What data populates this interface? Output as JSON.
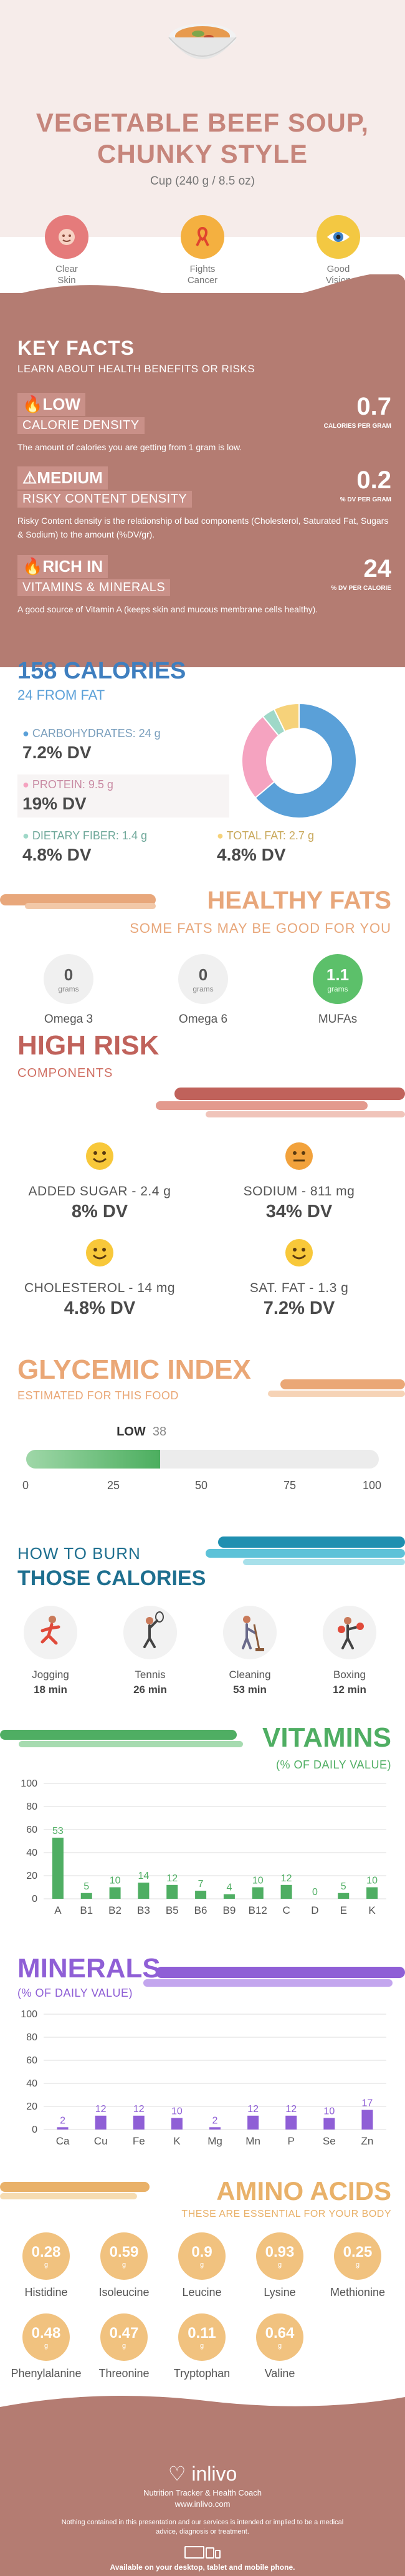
{
  "header": {
    "title": "VEGETABLE BEEF SOUP,",
    "title_line2": "CHUNKY STYLE",
    "serving": "Cup (240 g / 8.5 oz)",
    "benefits": [
      {
        "label": "Clear",
        "label2": "Skin",
        "icon": "face-icon",
        "color": "#e06a6a"
      },
      {
        "label": "Fights",
        "label2": "Cancer",
        "icon": "ribbon-icon",
        "color": "#f3a838"
      },
      {
        "label": "Good",
        "label2": "Vision",
        "icon": "eye-icon",
        "color": "#f0c43a"
      }
    ]
  },
  "key_facts": {
    "title": "KEY FACTS",
    "subtitle": "LEARN ABOUT HEALTH BENEFITS OR RISKS",
    "items": [
      {
        "level": "LOW",
        "category": "CALORIE DENSITY",
        "value": "0.7",
        "unit": "CALORIES PER GRAM",
        "desc": "The amount of calories you are getting from 1 gram is low."
      },
      {
        "level": "MEDIUM",
        "category": "RISKY CONTENT DENSITY",
        "value": "0.2",
        "unit": "% DV PER GRAM",
        "desc": "Risky Content density is the relationship of bad components (Cholesterol, Saturated Fat, Sugars & Sodium) to the amount (%DV/gr)."
      },
      {
        "level": "RICH  IN",
        "category": "VITAMINS & MINERALS",
        "value": "24",
        "unit": "% DV PER CALORIE",
        "desc": "A good source of Vitamin A (keeps skin and mucous membrane cells healthy)."
      }
    ]
  },
  "calories": {
    "title": "158 CALORIES",
    "subtitle": "24 FROM FAT",
    "carbs": {
      "name": "CARBOHYDRATES: 24 g",
      "dv": "7.2% DV",
      "color": "#5aa0d8"
    },
    "protein": {
      "name": "PROTEIN: 9.5 g",
      "dv": "19% DV",
      "color": "#f5a3c0"
    },
    "fiber": {
      "name": "DIETARY FIBER: 1.4 g",
      "dv": "4.8% DV",
      "color": "#9fd8c8"
    },
    "fat": {
      "name": "TOTAL FAT: 2.7 g",
      "dv": "4.8% DV",
      "color": "#f6d27a"
    }
  },
  "chart_data": [
    {
      "type": "pie",
      "categories": [
        "Carbohydrates",
        "Protein",
        "Dietary Fiber",
        "Total Fat"
      ],
      "values": [
        24,
        9.5,
        1.4,
        2.7
      ],
      "colors": [
        "#5aa0d8",
        "#f5a3c0",
        "#9fd8c8",
        "#f6d27a"
      ]
    },
    {
      "type": "bar",
      "title": "VITAMINS",
      "subtitle": "(% OF DAILY VALUE)",
      "categories": [
        "A",
        "B1",
        "B2",
        "B3",
        "B5",
        "B6",
        "B9",
        "B12",
        "C",
        "D",
        "E",
        "K"
      ],
      "values": [
        53,
        5,
        10,
        14,
        12,
        7,
        4,
        10,
        12,
        0,
        5,
        10
      ],
      "ylim": [
        0,
        100
      ],
      "yticks": [
        0,
        20,
        40,
        60,
        80,
        100
      ],
      "color": "#4fae63"
    },
    {
      "type": "bar",
      "title": "MINERALS",
      "subtitle": "(% OF DAILY VALUE)",
      "categories": [
        "Ca",
        "Cu",
        "Fe",
        "K",
        "Mg",
        "Mn",
        "P",
        "Se",
        "Zn"
      ],
      "values": [
        2,
        12,
        12,
        10,
        2,
        12,
        12,
        10,
        17
      ],
      "ylim": [
        0,
        100
      ],
      "yticks": [
        0,
        20,
        40,
        60,
        80,
        100
      ],
      "color": "#8f5fd6"
    }
  ],
  "healthy_fats": {
    "title": "HEALTHY FATS",
    "subtitle": "SOME FATS MAY BE GOOD FOR YOU",
    "items": [
      {
        "value": "0",
        "unit": "grams",
        "name": "Omega 3",
        "highlight": false
      },
      {
        "value": "0",
        "unit": "grams",
        "name": "Omega 6",
        "highlight": false
      },
      {
        "value": "1.1",
        "unit": "grams",
        "name": "MUFAs",
        "highlight": true
      }
    ]
  },
  "high_risk": {
    "title": "HIGH RISK",
    "subtitle": "COMPONENTS",
    "items": [
      {
        "name": "ADDED SUGAR - 2.4 g",
        "dv": "8% DV",
        "face": "happy-face-icon"
      },
      {
        "name": "SODIUM - 811 mg",
        "dv": "34% DV",
        "face": "neutral-face-icon"
      },
      {
        "name": "CHOLESTEROL - 14 mg",
        "dv": "4.8% DV",
        "face": "happy-face-icon"
      },
      {
        "name": "SAT. FAT - 1.3 g",
        "dv": "7.2% DV",
        "face": "happy-face-icon"
      }
    ]
  },
  "glycemic": {
    "title": "GLYCEMIC INDEX",
    "subtitle": "ESTIMATED FOR THIS FOOD",
    "level": "LOW",
    "value": 38,
    "value_label": "38",
    "ticks": [
      "0",
      "25",
      "50",
      "75",
      "100"
    ]
  },
  "burn": {
    "title1": "HOW TO BURN",
    "title2": "THOSE CALORIES",
    "activities": [
      {
        "name": "Jogging",
        "minutes": "18 min",
        "icon": "jogging-icon"
      },
      {
        "name": "Tennis",
        "minutes": "26 min",
        "icon": "tennis-icon"
      },
      {
        "name": "Cleaning",
        "minutes": "53 min",
        "icon": "cleaning-icon"
      },
      {
        "name": "Boxing",
        "minutes": "12 min",
        "icon": "boxing-icon"
      }
    ]
  },
  "amino": {
    "title": "AMINO ACIDS",
    "subtitle": "THESE ARE ESSENTIAL FOR YOUR BODY",
    "unit": "g",
    "items": [
      {
        "value": "0.28",
        "name": "Histidine"
      },
      {
        "value": "0.59",
        "name": "Isoleucine"
      },
      {
        "value": "0.9",
        "name": "Leucine"
      },
      {
        "value": "0.93",
        "name": "Lysine"
      },
      {
        "value": "0.25",
        "name": "Methionine"
      },
      {
        "value": "0.48",
        "name": "Phenylalanine"
      },
      {
        "value": "0.47",
        "name": "Threonine"
      },
      {
        "value": "0.11",
        "name": "Tryptophan"
      },
      {
        "value": "0.64",
        "name": "Valine"
      }
    ]
  },
  "footer": {
    "brand": "inlivo",
    "tagline": "Nutrition Tracker & Health Coach",
    "url": "www.inlivo.com",
    "disclaimer": "Nothing contained in this presentation and our services is intended or implied to be a medical advice, diagnosis or treatment.",
    "available": "Available on your desktop, tablet and mobile phone."
  }
}
